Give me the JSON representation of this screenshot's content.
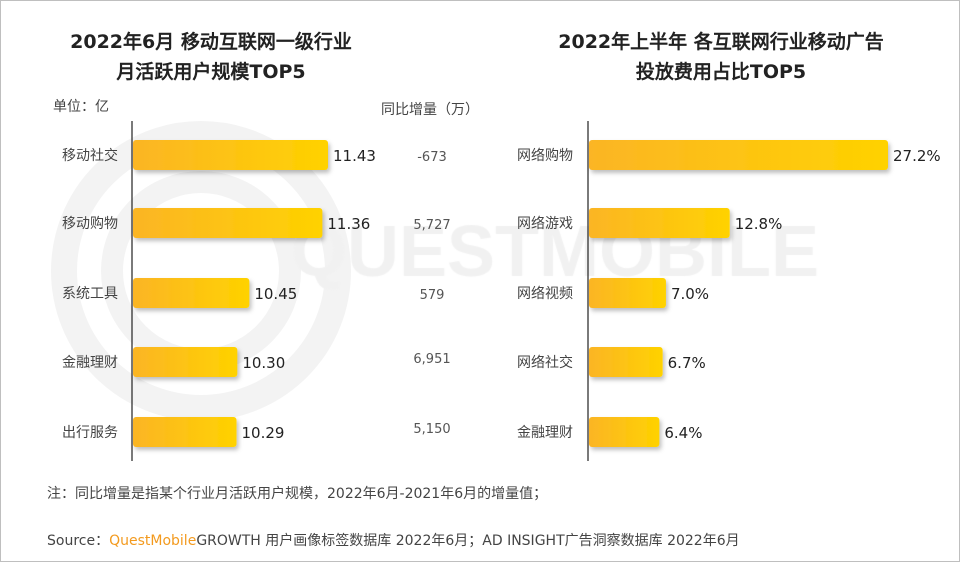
{
  "watermark": "QUESTMOBILE",
  "chart_data": [
    {
      "type": "bar",
      "orientation": "horizontal",
      "title_lines": [
        "2022年6月 移动互联网一级行业",
        "月活跃用户规模TOP5"
      ],
      "unit_label": "单位：亿",
      "extra_column_header": "同比增量（万）",
      "categories": [
        "移动社交",
        "移动购物",
        "系统工具",
        "金融理财",
        "出行服务"
      ],
      "values": [
        11.43,
        11.36,
        10.45,
        10.3,
        10.29
      ],
      "value_labels": [
        "11.43",
        "11.36",
        "10.45",
        "10.30",
        "10.29"
      ],
      "extra_values": [
        "-673",
        "5,727",
        "579",
        "6,951",
        "5,150"
      ],
      "xlim": [
        9,
        11.43
      ],
      "bar_color": [
        "#fbb525",
        "#ffd200"
      ]
    },
    {
      "type": "bar",
      "orientation": "horizontal",
      "title_lines": [
        "2022年上半年 各互联网行业移动广告",
        "投放费用占比TOP5"
      ],
      "categories": [
        "网络购物",
        "网络游戏",
        "网络视频",
        "网络社交",
        "金融理财"
      ],
      "values": [
        27.2,
        12.8,
        7.0,
        6.7,
        6.4
      ],
      "value_labels": [
        "27.2%",
        "12.8%",
        "7.0%",
        "6.7%",
        "6.4%"
      ],
      "xlim": [
        0,
        27.2
      ],
      "bar_color": [
        "#fbb525",
        "#ffd200"
      ]
    }
  ],
  "footer": {
    "note": "注：同比增量是指某个行业月活跃用户规模，2022年6月-2021年6月的增量值；",
    "source_prefix": "Source：",
    "source_brand": "QuestMobile",
    "source_rest": "GROWTH 用户画像标签数据库 2022年6月；AD INSIGHT广告洞察数据库 2022年6月"
  }
}
